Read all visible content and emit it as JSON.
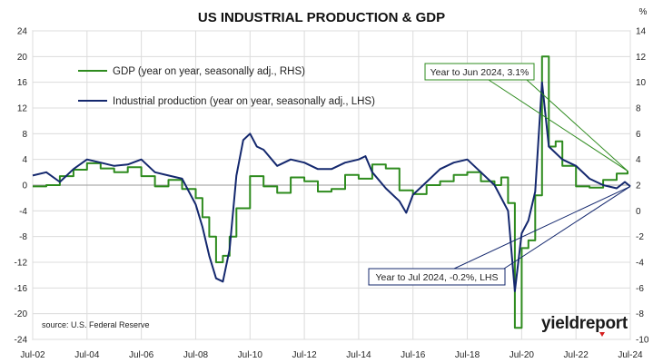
{
  "chart_data": {
    "type": "line",
    "title": "US INDUSTRIAL PRODUCTION & GDP",
    "right_axis_unit": "%",
    "x_labels": [
      "Jul-02",
      "Jul-04",
      "Jul-06",
      "Jul-08",
      "Jul-10",
      "Jul-12",
      "Jul-14",
      "Jul-16",
      "Jul-18",
      "Jul-20",
      "Jul-22",
      "Jul-24"
    ],
    "x_range": [
      2002.5,
      2024.5
    ],
    "left_axis": {
      "min": -24,
      "max": 24,
      "ticks": [
        -24,
        -20,
        -16,
        -12,
        -8,
        -4,
        0,
        4,
        8,
        12,
        16,
        20,
        24
      ]
    },
    "right_axis": {
      "min": -10,
      "max": 14,
      "ticks": [
        -10,
        -8,
        -6,
        -4,
        -2,
        0,
        2,
        4,
        6,
        8,
        10,
        12,
        14
      ]
    },
    "grid": true,
    "legend_position": "top-left",
    "series": [
      {
        "name": "GDP (year on year, seasonally adj., RHS)",
        "axis": "right",
        "color": "#2e8b1e",
        "x": [
          2002.5,
          2003.0,
          2003.5,
          2004.0,
          2004.5,
          2005.0,
          2005.5,
          2006.0,
          2006.5,
          2007.0,
          2007.5,
          2008.0,
          2008.5,
          2008.75,
          2009.0,
          2009.25,
          2009.5,
          2009.75,
          2010.0,
          2010.5,
          2011.0,
          2011.5,
          2012.0,
          2012.5,
          2013.0,
          2013.5,
          2014.0,
          2014.5,
          2015.0,
          2015.5,
          2016.0,
          2016.5,
          2017.0,
          2017.5,
          2018.0,
          2018.5,
          2019.0,
          2019.5,
          2019.75,
          2020.0,
          2020.25,
          2020.5,
          2020.75,
          2021.0,
          2021.25,
          2021.5,
          2021.75,
          2022.0,
          2022.5,
          2023.0,
          2023.5,
          2024.0,
          2024.4
        ],
        "y": [
          1.9,
          2.0,
          2.7,
          3.2,
          3.7,
          3.3,
          3.0,
          3.4,
          2.7,
          1.9,
          2.4,
          1.7,
          1.0,
          -0.5,
          -2.0,
          -4.0,
          -3.5,
          -2.0,
          0.2,
          2.7,
          1.9,
          1.4,
          2.6,
          2.3,
          1.5,
          1.7,
          2.8,
          2.5,
          3.6,
          3.3,
          1.6,
          1.3,
          2.0,
          2.3,
          2.8,
          3.0,
          2.3,
          2.0,
          2.6,
          0.6,
          -9.1,
          -2.9,
          -2.3,
          1.2,
          12.0,
          5.0,
          5.4,
          3.5,
          1.9,
          1.8,
          2.4,
          2.9,
          3.1
        ]
      },
      {
        "name": "Industrial production (year on year, seasonally adj., LHS)",
        "axis": "left",
        "color": "#14286e",
        "x": [
          2002.5,
          2003.0,
          2003.5,
          2004.0,
          2004.5,
          2005.0,
          2005.5,
          2006.0,
          2006.5,
          2007.0,
          2007.5,
          2008.0,
          2008.25,
          2008.5,
          2008.75,
          2009.0,
          2009.25,
          2009.5,
          2009.75,
          2010.0,
          2010.25,
          2010.5,
          2010.75,
          2011.0,
          2011.5,
          2012.0,
          2012.5,
          2013.0,
          2013.5,
          2014.0,
          2014.5,
          2014.75,
          2015.0,
          2015.5,
          2016.0,
          2016.25,
          2016.5,
          2017.0,
          2017.5,
          2018.0,
          2018.5,
          2019.0,
          2019.5,
          2020.0,
          2020.25,
          2020.5,
          2020.75,
          2021.0,
          2021.25,
          2021.5,
          2021.75,
          2022.0,
          2022.5,
          2023.0,
          2023.5,
          2024.0,
          2024.3,
          2024.5
        ],
        "y": [
          1.5,
          2.0,
          0.5,
          2.5,
          4.0,
          3.5,
          3.0,
          3.2,
          4.0,
          2.0,
          1.5,
          1.0,
          -1.0,
          -3.0,
          -6.5,
          -11.0,
          -14.5,
          -15.0,
          -10.0,
          1.5,
          7.0,
          8.0,
          6.0,
          5.5,
          3.0,
          4.0,
          3.5,
          2.5,
          2.5,
          3.5,
          4.0,
          4.5,
          2.0,
          -0.5,
          -2.5,
          -4.3,
          -1.5,
          0.5,
          2.5,
          3.5,
          4.0,
          2.0,
          0.0,
          -4.0,
          -16.5,
          -7.5,
          -5.5,
          -1.0,
          16.0,
          6.0,
          5.0,
          4.0,
          3.0,
          1.0,
          0.0,
          -0.5,
          0.5,
          -0.2
        ]
      }
    ],
    "annotations": [
      {
        "text": "Year to Jun 2024, 3.1%",
        "x": 2024.4,
        "y": 3.1,
        "axis": "right"
      },
      {
        "text": "Year to Jul 2024, -0.2%, LHS",
        "x": 2024.5,
        "y": -0.2,
        "axis": "left"
      }
    ],
    "source": "source: U.S. Federal Reserve",
    "logo": "yieldreport"
  }
}
